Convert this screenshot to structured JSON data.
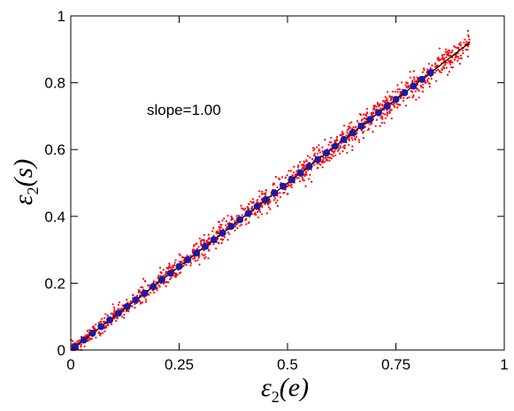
{
  "chart_data": {
    "type": "scatter",
    "title": "",
    "xlabel_main": "ε",
    "xlabel_sub": "2",
    "xlabel_arg": "(e)",
    "ylabel_main": "ε",
    "ylabel_sub": "2",
    "ylabel_arg": "(s)",
    "xlim": [
      0,
      1
    ],
    "ylim": [
      0,
      1
    ],
    "xticks": [
      0,
      0.25,
      0.5,
      0.75,
      1
    ],
    "xtick_labels": [
      "0",
      "0.25",
      "0.5",
      "0.75",
      "1"
    ],
    "yticks": [
      0,
      0.2,
      0.4,
      0.6,
      0.8,
      1
    ],
    "ytick_labels": [
      "0",
      "0.2",
      "0.4",
      "0.6",
      "0.8",
      "1"
    ],
    "grid": false,
    "annotation": "slope=1.00",
    "series": [
      {
        "kind": "scatter-cloud",
        "color": "#ff0000",
        "x_range": [
          0,
          0.92
        ],
        "point_count": 1400,
        "spread": 0.018
      },
      {
        "kind": "binned-means",
        "color": "#1a1aa8",
        "x": [
          0.01,
          0.03,
          0.05,
          0.07,
          0.09,
          0.11,
          0.13,
          0.15,
          0.17,
          0.19,
          0.21,
          0.23,
          0.25,
          0.27,
          0.29,
          0.31,
          0.33,
          0.35,
          0.37,
          0.39,
          0.41,
          0.43,
          0.45,
          0.47,
          0.49,
          0.51,
          0.53,
          0.55,
          0.57,
          0.59,
          0.61,
          0.63,
          0.65,
          0.67,
          0.69,
          0.71,
          0.73,
          0.75,
          0.77,
          0.79,
          0.81,
          0.83
        ],
        "y": [
          0.01,
          0.03,
          0.05,
          0.07,
          0.09,
          0.11,
          0.13,
          0.15,
          0.17,
          0.19,
          0.21,
          0.23,
          0.25,
          0.27,
          0.29,
          0.31,
          0.33,
          0.35,
          0.37,
          0.39,
          0.41,
          0.43,
          0.45,
          0.47,
          0.49,
          0.51,
          0.53,
          0.55,
          0.57,
          0.59,
          0.61,
          0.63,
          0.65,
          0.67,
          0.69,
          0.71,
          0.73,
          0.75,
          0.77,
          0.79,
          0.81,
          0.83
        ]
      },
      {
        "kind": "fit-line",
        "color": "#000000",
        "x": [
          0,
          0.92
        ],
        "y": [
          0,
          0.92
        ]
      }
    ]
  }
}
